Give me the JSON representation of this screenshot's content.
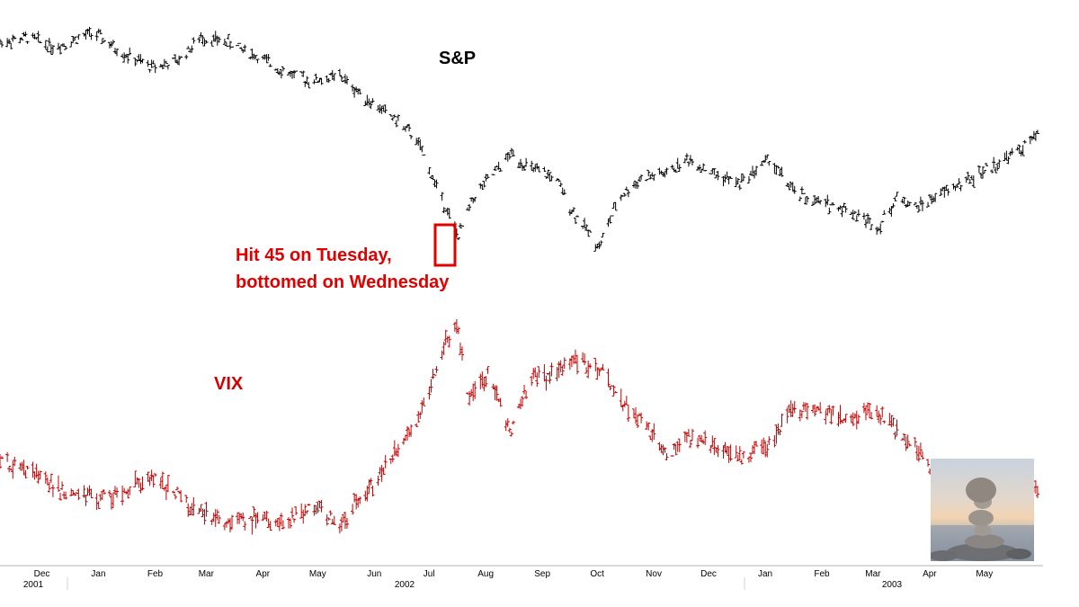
{
  "chart_data": [
    {
      "type": "ohlc",
      "series_name": "S&P",
      "color": "#000000",
      "x_range": [
        "2001-11-15",
        "2003-06-08"
      ],
      "y_scale": "relative",
      "points": [
        [
          "2001-11-15",
          100
        ],
        [
          "2001-12-01",
          101
        ],
        [
          "2001-12-15",
          99
        ],
        [
          "2002-01-05",
          102
        ],
        [
          "2002-01-20",
          98
        ],
        [
          "2002-02-05",
          95
        ],
        [
          "2002-02-20",
          96
        ],
        [
          "2002-03-05",
          101
        ],
        [
          "2002-03-20",
          100
        ],
        [
          "2002-04-05",
          97
        ],
        [
          "2002-04-20",
          94
        ],
        [
          "2002-05-05",
          92
        ],
        [
          "2002-05-20",
          93
        ],
        [
          "2002-06-05",
          88
        ],
        [
          "2002-06-20",
          84
        ],
        [
          "2002-07-01",
          80
        ],
        [
          "2002-07-10",
          72
        ],
        [
          "2002-07-17",
          66
        ],
        [
          "2002-07-24",
          60
        ],
        [
          "2002-08-01",
          68
        ],
        [
          "2002-08-10",
          72
        ],
        [
          "2002-08-22",
          77
        ],
        [
          "2002-09-01",
          74
        ],
        [
          "2002-09-15",
          72
        ],
        [
          "2002-09-25",
          65
        ],
        [
          "2002-10-09",
          58
        ],
        [
          "2002-10-20",
          68
        ],
        [
          "2002-11-01",
          72
        ],
        [
          "2002-11-15",
          73
        ],
        [
          "2002-11-27",
          76
        ],
        [
          "2002-12-10",
          73
        ],
        [
          "2002-12-25",
          71
        ],
        [
          "2003-01-10",
          76
        ],
        [
          "2003-01-24",
          69
        ],
        [
          "2003-02-05",
          67
        ],
        [
          "2003-02-20",
          66
        ],
        [
          "2003-03-11",
          62
        ],
        [
          "2003-03-21",
          68
        ],
        [
          "2003-04-01",
          66
        ],
        [
          "2003-04-15",
          69
        ],
        [
          "2003-05-01",
          72
        ],
        [
          "2003-05-15",
          75
        ],
        [
          "2003-06-01",
          79
        ],
        [
          "2003-06-08",
          82
        ]
      ]
    },
    {
      "type": "ohlc",
      "series_name": "VIX",
      "color": "#c00000",
      "x_range": [
        "2001-11-15",
        "2003-06-08"
      ],
      "y_scale": "relative",
      "points": [
        [
          "2001-11-15",
          30
        ],
        [
          "2001-12-01",
          29
        ],
        [
          "2001-12-15",
          26
        ],
        [
          "2002-01-05",
          24
        ],
        [
          "2002-01-20",
          25
        ],
        [
          "2002-02-05",
          28
        ],
        [
          "2002-02-20",
          25
        ],
        [
          "2002-03-05",
          22
        ],
        [
          "2002-03-20",
          20
        ],
        [
          "2002-04-05",
          21
        ],
        [
          "2002-04-20",
          20
        ],
        [
          "2002-05-05",
          23
        ],
        [
          "2002-05-20",
          20
        ],
        [
          "2002-06-05",
          26
        ],
        [
          "2002-06-20",
          32
        ],
        [
          "2002-07-01",
          36
        ],
        [
          "2002-07-10",
          43
        ],
        [
          "2002-07-17",
          49
        ],
        [
          "2002-07-23",
          52
        ],
        [
          "2002-07-30",
          40
        ],
        [
          "2002-08-10",
          44
        ],
        [
          "2002-08-22",
          35
        ],
        [
          "2002-09-01",
          43
        ],
        [
          "2002-09-15",
          44
        ],
        [
          "2002-09-25",
          46
        ],
        [
          "2002-10-09",
          45
        ],
        [
          "2002-10-20",
          40
        ],
        [
          "2002-11-01",
          37
        ],
        [
          "2002-11-15",
          31
        ],
        [
          "2002-11-27",
          34
        ],
        [
          "2002-12-10",
          33
        ],
        [
          "2002-12-25",
          31
        ],
        [
          "2003-01-10",
          33
        ],
        [
          "2003-01-24",
          39
        ],
        [
          "2003-02-05",
          38
        ],
        [
          "2003-02-20",
          37
        ],
        [
          "2003-03-11",
          38
        ],
        [
          "2003-03-21",
          35
        ],
        [
          "2003-04-01",
          32
        ],
        [
          "2003-04-15",
          26
        ],
        [
          "2003-05-01",
          25
        ],
        [
          "2003-05-15",
          24
        ],
        [
          "2003-06-01",
          25
        ],
        [
          "2003-06-08",
          26
        ]
      ]
    }
  ],
  "labels": {
    "sp": "S&P",
    "vix": "VIX",
    "annotation_line1": "Hit 45 on Tuesday,",
    "annotation_line2": "bottomed on Wednesday"
  },
  "annotation": {
    "date": "2002-07-24",
    "color": "#e00000"
  },
  "axis": {
    "months": [
      {
        "label": "Dec",
        "date": "2001-12-01"
      },
      {
        "label": "Jan",
        "date": "2002-01-01"
      },
      {
        "label": "Feb",
        "date": "2002-02-01"
      },
      {
        "label": "Mar",
        "date": "2002-03-01"
      },
      {
        "label": "Apr",
        "date": "2002-04-01"
      },
      {
        "label": "May",
        "date": "2002-05-01"
      },
      {
        "label": "Jun",
        "date": "2002-06-01"
      },
      {
        "label": "Jul",
        "date": "2002-07-01"
      },
      {
        "label": "Aug",
        "date": "2002-08-01"
      },
      {
        "label": "Sep",
        "date": "2002-09-01"
      },
      {
        "label": "Oct",
        "date": "2002-10-01"
      },
      {
        "label": "Nov",
        "date": "2002-11-01"
      },
      {
        "label": "Dec",
        "date": "2002-12-01"
      },
      {
        "label": "Jan",
        "date": "2003-01-01"
      },
      {
        "label": "Feb",
        "date": "2003-02-01"
      },
      {
        "label": "Mar",
        "date": "2003-03-01"
      },
      {
        "label": "Apr",
        "date": "2003-04-01"
      },
      {
        "label": "May",
        "date": "2003-05-01"
      }
    ],
    "years": [
      {
        "label": "2001",
        "date": "2001-12-01"
      },
      {
        "label": "2002",
        "date": "2002-01-01"
      },
      {
        "label": "2003",
        "date": "2003-01-01"
      }
    ]
  },
  "inset": {
    "subject": "balanced-stones-photo"
  }
}
